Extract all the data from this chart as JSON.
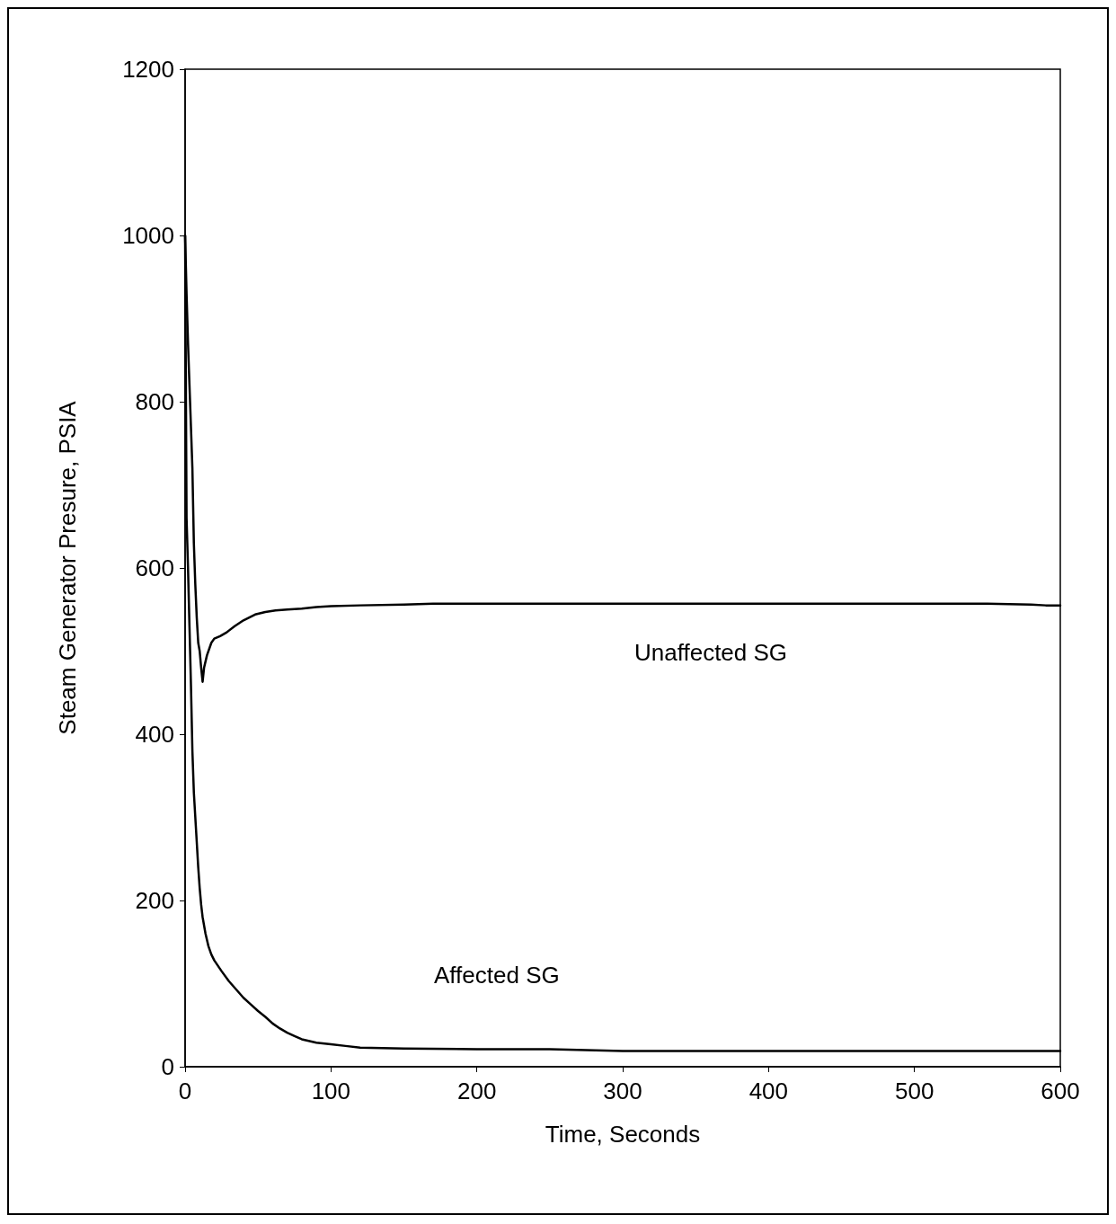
{
  "chart_data": {
    "type": "line",
    "xlabel": "Time, Seconds",
    "ylabel": "Steam Generator Presure, PSIA",
    "xlim": [
      0,
      600
    ],
    "xticks": [
      0,
      100,
      200,
      300,
      400,
      500,
      600
    ],
    "ylim": [
      0,
      1200
    ],
    "yticks": [
      0,
      200,
      400,
      600,
      800,
      1000,
      1200
    ],
    "grid": false,
    "marker": "none",
    "line_style": "solid",
    "series": [
      {
        "color": "#000000",
        "x": [
          0,
          1,
          2,
          3,
          4,
          5,
          6,
          7,
          8,
          9,
          10,
          11,
          12,
          13,
          15,
          18,
          20,
          24,
          28,
          34,
          40,
          48,
          55,
          62,
          70,
          80,
          90,
          100,
          120,
          150,
          170,
          250,
          350,
          450,
          550,
          580,
          590,
          600
        ],
        "values": [
          1000,
          930,
          870,
          820,
          770,
          720,
          630,
          580,
          540,
          510,
          500,
          480,
          463,
          480,
          495,
          510,
          515,
          518,
          522,
          530,
          537,
          544,
          547,
          549,
          550,
          551,
          553,
          554,
          555,
          556,
          557,
          557,
          557,
          557,
          557,
          556,
          555,
          555
        ]
      },
      {
        "color": "#000000",
        "x": [
          0,
          1,
          2,
          3,
          4,
          5,
          6,
          7,
          8,
          9,
          10,
          11,
          12,
          14,
          16,
          18,
          20,
          25,
          30,
          35,
          40,
          45,
          50,
          55,
          60,
          65,
          70,
          75,
          80,
          90,
          100,
          110,
          120,
          150,
          200,
          250,
          300,
          350,
          400,
          500,
          600
        ],
        "values": [
          1000,
          660,
          600,
          530,
          460,
          380,
          330,
          300,
          270,
          240,
          215,
          195,
          180,
          160,
          145,
          135,
          128,
          115,
          103,
          93,
          83,
          75,
          67,
          60,
          52,
          46,
          41,
          37,
          33,
          29,
          27,
          25,
          23,
          22,
          21,
          21,
          19,
          19,
          19,
          19,
          19
        ]
      }
    ],
    "annotations": [
      "Unaffected SG",
      "Affected SG"
    ]
  }
}
